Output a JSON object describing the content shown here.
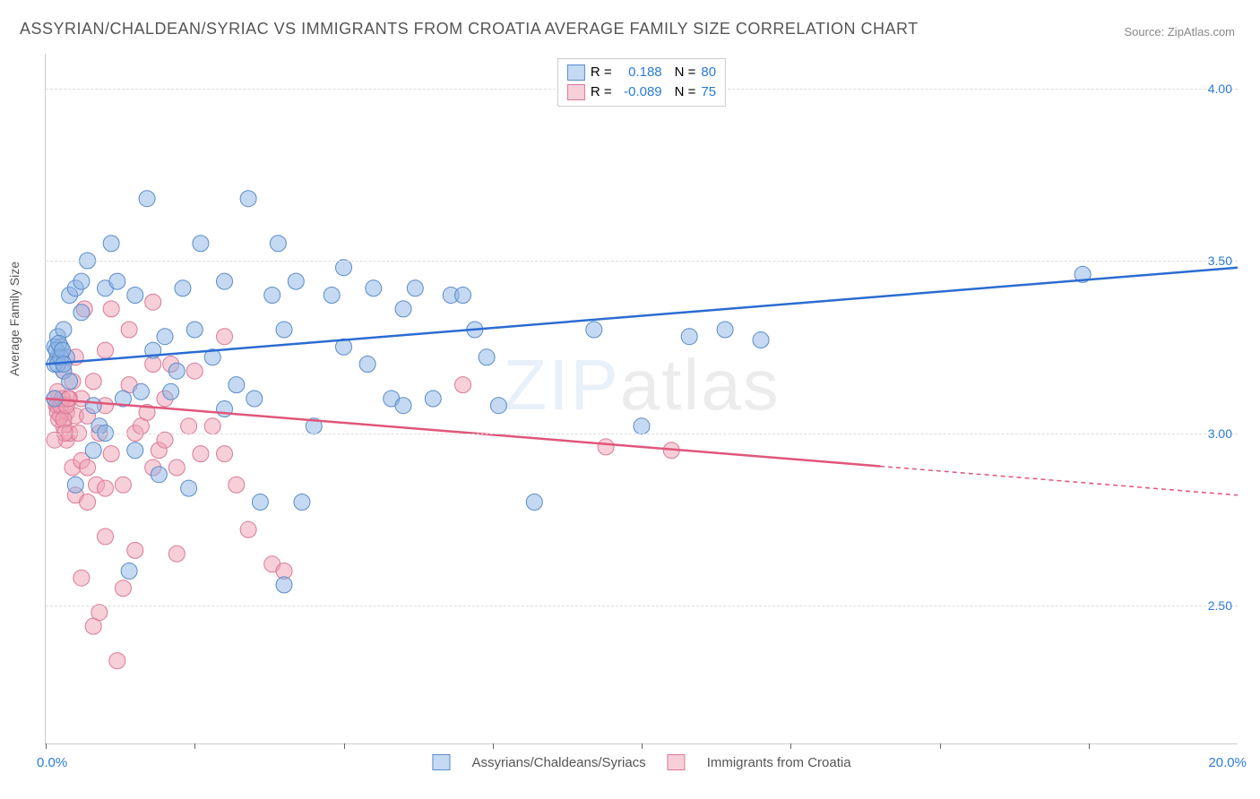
{
  "title": "ASSYRIAN/CHALDEAN/SYRIAC VS IMMIGRANTS FROM CROATIA AVERAGE FAMILY SIZE CORRELATION CHART",
  "source": "Source: ZipAtlas.com",
  "ylabel": "Average Family Size",
  "watermark_a": "ZIP",
  "watermark_b": "atlas",
  "chart": {
    "type": "scatter",
    "xlim": [
      0,
      20
    ],
    "ylim": [
      2.1,
      4.1
    ],
    "xticks": [
      0,
      2.5,
      5,
      7.5,
      10,
      12.5,
      15,
      17.5
    ],
    "yticks": [
      2.5,
      3.0,
      3.5,
      4.0
    ],
    "x_axis_label_left": "0.0%",
    "x_axis_label_right": "20.0%",
    "x_label_color": "#2b7bd9",
    "ytick_color": "#2b7bd9",
    "grid_color": "#dddddd",
    "point_radius": 9,
    "series": [
      {
        "name": "Assyrians/Chaldeans/Syriacs",
        "fill": "rgba(140,180,230,0.5)",
        "stroke": "#5a8cc9",
        "line_color": "#2b6cd1",
        "R": "0.188",
        "N": "80",
        "trend": {
          "y0": 3.2,
          "y1": 3.48,
          "x_data_end": 20
        },
        "points": [
          [
            0.2,
            3.22
          ],
          [
            0.2,
            3.28
          ],
          [
            0.25,
            3.25
          ],
          [
            0.3,
            3.18
          ],
          [
            0.3,
            3.3
          ],
          [
            0.35,
            3.22
          ],
          [
            0.4,
            3.4
          ],
          [
            0.4,
            3.15
          ],
          [
            0.5,
            2.85
          ],
          [
            0.5,
            3.42
          ],
          [
            0.6,
            3.35
          ],
          [
            0.6,
            3.44
          ],
          [
            0.7,
            3.5
          ],
          [
            0.8,
            3.08
          ],
          [
            0.9,
            3.02
          ],
          [
            1.0,
            3.42
          ],
          [
            1.0,
            3.0
          ],
          [
            1.1,
            3.55
          ],
          [
            1.2,
            3.44
          ],
          [
            1.3,
            3.1
          ],
          [
            1.4,
            2.6
          ],
          [
            1.5,
            3.4
          ],
          [
            1.6,
            3.12
          ],
          [
            1.7,
            3.68
          ],
          [
            1.8,
            3.24
          ],
          [
            1.9,
            2.88
          ],
          [
            2.0,
            3.28
          ],
          [
            2.1,
            3.12
          ],
          [
            2.2,
            3.18
          ],
          [
            2.3,
            3.42
          ],
          [
            2.4,
            2.84
          ],
          [
            2.5,
            3.3
          ],
          [
            2.6,
            3.55
          ],
          [
            2.8,
            3.22
          ],
          [
            3.0,
            3.44
          ],
          [
            3.0,
            3.07
          ],
          [
            3.2,
            3.14
          ],
          [
            3.4,
            3.68
          ],
          [
            3.5,
            3.1
          ],
          [
            3.6,
            2.8
          ],
          [
            3.8,
            3.4
          ],
          [
            4.0,
            2.56
          ],
          [
            4.0,
            3.3
          ],
          [
            4.2,
            3.44
          ],
          [
            4.3,
            2.8
          ],
          [
            4.5,
            3.02
          ],
          [
            4.8,
            3.4
          ],
          [
            5.0,
            3.25
          ],
          [
            5.0,
            3.48
          ],
          [
            5.4,
            3.2
          ],
          [
            5.5,
            3.42
          ],
          [
            5.8,
            3.1
          ],
          [
            6.0,
            3.36
          ],
          [
            6.0,
            3.08
          ],
          [
            6.2,
            3.42
          ],
          [
            6.5,
            3.1
          ],
          [
            6.8,
            3.4
          ],
          [
            7.0,
            3.4
          ],
          [
            7.2,
            3.3
          ],
          [
            7.4,
            3.22
          ],
          [
            7.6,
            3.08
          ],
          [
            8.2,
            2.8
          ],
          [
            9.2,
            3.3
          ],
          [
            10.0,
            3.02
          ],
          [
            10.8,
            3.28
          ],
          [
            11.4,
            3.3
          ],
          [
            12.0,
            3.27
          ],
          [
            17.4,
            3.46
          ],
          [
            0.15,
            3.2
          ],
          [
            0.15,
            3.25
          ],
          [
            0.18,
            3.24
          ],
          [
            0.2,
            3.2
          ],
          [
            0.22,
            3.26
          ],
          [
            0.25,
            3.22
          ],
          [
            0.28,
            3.24
          ],
          [
            0.3,
            3.2
          ],
          [
            0.15,
            3.1
          ],
          [
            0.8,
            2.95
          ],
          [
            1.5,
            2.95
          ],
          [
            3.9,
            3.55
          ]
        ]
      },
      {
        "name": "Immigrants from Croatia",
        "fill": "rgba(240,160,180,0.5)",
        "stroke": "#d97a96",
        "line_color": "#e0567a",
        "R": "-0.089",
        "N": "75",
        "trend": {
          "y0": 3.1,
          "y1": 2.82,
          "x_data_end": 14
        },
        "points": [
          [
            0.2,
            3.12
          ],
          [
            0.2,
            3.08
          ],
          [
            0.25,
            3.05
          ],
          [
            0.3,
            3.02
          ],
          [
            0.3,
            3.18
          ],
          [
            0.35,
            3.06
          ],
          [
            0.35,
            2.98
          ],
          [
            0.4,
            3.1
          ],
          [
            0.4,
            3.0
          ],
          [
            0.45,
            3.15
          ],
          [
            0.45,
            2.9
          ],
          [
            0.5,
            3.05
          ],
          [
            0.5,
            3.22
          ],
          [
            0.55,
            3.0
          ],
          [
            0.6,
            3.1
          ],
          [
            0.6,
            2.92
          ],
          [
            0.65,
            3.36
          ],
          [
            0.7,
            2.9
          ],
          [
            0.7,
            3.05
          ],
          [
            0.8,
            2.44
          ],
          [
            0.8,
            3.15
          ],
          [
            0.85,
            2.85
          ],
          [
            0.9,
            3.0
          ],
          [
            0.9,
            2.48
          ],
          [
            1.0,
            3.08
          ],
          [
            1.0,
            2.7
          ],
          [
            1.1,
            3.36
          ],
          [
            1.1,
            2.94
          ],
          [
            1.2,
            2.34
          ],
          [
            1.3,
            2.85
          ],
          [
            1.3,
            2.55
          ],
          [
            1.4,
            3.14
          ],
          [
            1.4,
            3.3
          ],
          [
            1.5,
            2.66
          ],
          [
            1.5,
            3.0
          ],
          [
            1.6,
            3.02
          ],
          [
            1.7,
            3.06
          ],
          [
            1.8,
            3.2
          ],
          [
            1.8,
            2.9
          ],
          [
            1.9,
            2.95
          ],
          [
            2.0,
            2.98
          ],
          [
            2.0,
            3.1
          ],
          [
            2.1,
            3.2
          ],
          [
            2.2,
            2.65
          ],
          [
            2.2,
            2.9
          ],
          [
            2.4,
            3.02
          ],
          [
            2.5,
            3.18
          ],
          [
            2.6,
            2.94
          ],
          [
            2.8,
            3.02
          ],
          [
            3.0,
            2.94
          ],
          [
            3.0,
            3.28
          ],
          [
            3.2,
            2.85
          ],
          [
            3.4,
            2.72
          ],
          [
            3.8,
            2.62
          ],
          [
            4.0,
            2.6
          ],
          [
            7.0,
            3.14
          ],
          [
            9.4,
            2.96
          ],
          [
            10.5,
            2.95
          ],
          [
            0.15,
            3.1
          ],
          [
            0.18,
            3.08
          ],
          [
            0.2,
            3.06
          ],
          [
            0.22,
            3.04
          ],
          [
            0.25,
            3.08
          ],
          [
            0.28,
            3.1
          ],
          [
            0.3,
            3.04
          ],
          [
            0.32,
            3.0
          ],
          [
            0.35,
            3.08
          ],
          [
            0.38,
            3.1
          ],
          [
            0.15,
            2.98
          ],
          [
            0.5,
            2.82
          ],
          [
            0.7,
            2.8
          ],
          [
            1.0,
            2.84
          ],
          [
            1.8,
            3.38
          ],
          [
            1.0,
            3.24
          ],
          [
            0.6,
            2.58
          ]
        ]
      }
    ]
  }
}
